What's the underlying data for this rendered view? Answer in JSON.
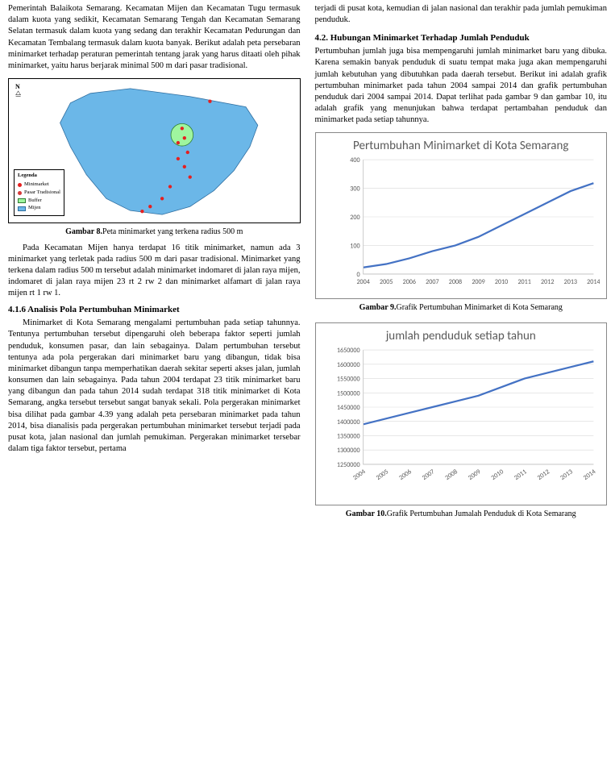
{
  "col1": {
    "p_top": "Pemerintah Balaikota Semarang. Kecamatan Mijen dan Kecamatan Tugu termasuk dalam kuota yang sedikit, Kecamatan Semarang Tengah dan Kecamatan Semarang Selatan termasuk dalam kuota yang sedang dan terakhir Kecamatan Pedurungan dan Kecamatan Tembalang termasuk dalam kuota banyak. Berikut adalah peta persebaran minimarket terhadap peraturan pemerintah tentang jarak yang harus ditaati oleh pihak minimarket, yaitu harus berjarak minimal 500 m dari pasar tradisional.",
    "map": {
      "compass": "N",
      "legend_title": "Legenda",
      "legend_items": [
        {
          "label": "Minimarket",
          "type": "dot",
          "color": "#e52020"
        },
        {
          "label": "Pasar Tradisional",
          "type": "dot",
          "color": "#d63a3a"
        },
        {
          "label": "Buffer",
          "type": "sw",
          "color": "#9ff59f",
          "border": "#2e7d32"
        },
        {
          "label": "Mijen",
          "type": "sw",
          "color": "#6bb7e8",
          "border": "#2f6ea0"
        }
      ],
      "region_fill": "#6bb7e8",
      "region_stroke": "#2f6ea0",
      "buffer_fill": "#9ff59f",
      "buffer_stroke": "#2e7d32",
      "point_color": "#e52020"
    },
    "caption8_b": "Gambar 8.",
    "caption8": "Peta minimarket yang terkena radius 500 m",
    "p_after_map": "Pada Kecamatan Mijen hanya terdapat 16 titik minimarket, namun ada 3 minimarket yang terletak pada radius 500 m dari pasar tradisional. Minimarket yang terkena dalam radius 500 m tersebut adalah minimarket indomaret di jalan raya mijen, indomaret di jalan raya mijen 23 rt 2 rw 2 dan minimarket alfamart di jalan raya mijen rt 1 rw 1.",
    "h416": "4.1.6  Analisis Pola Pertumbuhan Minimarket",
    "p416": "Minimarket di Kota Semarang mengalami pertumbuhan pada setiap tahunnya. Tentunya pertumbuhan tersebut dipengaruhi oleh beberapa faktor seperti jumlah penduduk, konsumen pasar, dan lain sebagainya. Dalam pertumbuhan tersebut tentunya ada pola pergerakan dari minimarket baru yang dibangun, tidak bisa minimarket dibangun tanpa memperhatikan daerah sekitar seperti akses jalan, jumlah konsumen dan lain sebagainya. Pada tahun 2004 terdapat 23 titik minimarket baru yang dibangun dan pada tahun 2014 sudah terdapat 318 titik minimarket di Kota Semarang, angka tersebut tersebut sangat banyak sekali. Pola pergerakan minimarket bisa dilihat pada gambar 4.39 yang adalah peta persebaran minimarket pada tahun 2014, bisa dianalisis pada pergerakan pertumbuhan minimarket tersebut terjadi pada pusat kota, jalan nasional dan jumlah pemukiman. Pergerakan minimarket tersebar dalam tiga faktor tersebut, pertama"
  },
  "col2": {
    "p_top": "terjadi di pusat kota, kemudian di jalan nasional dan terakhir pada jumlah pemukiman penduduk.",
    "h42": "4.2.   Hubungan Minimarket Terhadap Jumlah Penduduk",
    "p42": "Pertumbuhan jumlah juga bisa mempengaruhi jumlah minimarket baru yang dibuka. Karena semakin banyak penduduk di suatu tempat maka juga akan mempengaruhi jumlah kebutuhan yang dibutuhkan pada daerah tersebut. Berikut ini adalah grafik pertumbuhan minimarket pada tahun 2004 sampai 2014 dan grafik pertumbuhan penduduk dari 2004 sampai 2014. Dapat terlihat pada gambar 9 dan gambar 10, itu adalah grafik yang menunjukan bahwa terdapat pertambahan penduduk dan minimarket pada setiap tahunnya.",
    "chart9": {
      "title": "Pertumbuhan Minimarket di Kota Semarang",
      "title_fontsize": 15,
      "years": [
        "2004",
        "2005",
        "2006",
        "2007",
        "2008",
        "2009",
        "2010",
        "2011",
        "2012",
        "2013",
        "2014"
      ],
      "values": [
        23,
        35,
        55,
        80,
        100,
        130,
        170,
        210,
        250,
        290,
        318
      ],
      "ylim": [
        0,
        400
      ],
      "ytick_step": 100,
      "yticks": [
        0,
        100,
        200,
        300,
        400
      ],
      "line_color": "#4472c4",
      "grid_color": "#d9d9d9",
      "bg": "#ffffff",
      "tick_font": 8
    },
    "caption9_b": "Gambar 9.",
    "caption9": "Grafik Pertumbuhan Minimarket di Kota Semarang",
    "chart10": {
      "title": "jumlah penduduk setiap tahun",
      "title_fontsize": 15,
      "years": [
        "2004",
        "2005",
        "2006",
        "2007",
        "2008",
        "2009",
        "2010",
        "2011",
        "2012",
        "2013",
        "2014"
      ],
      "values": [
        1390000,
        1410000,
        1430000,
        1450000,
        1470000,
        1490000,
        1520000,
        1550000,
        1570000,
        1590000,
        1610000
      ],
      "ylim": [
        1250000,
        1650000
      ],
      "ytick_step": 50000,
      "yticks": [
        1250000,
        1300000,
        1350000,
        1400000,
        1450000,
        1500000,
        1550000,
        1600000,
        1650000
      ],
      "line_color": "#4472c4",
      "grid_color": "#d9d9d9",
      "bg": "#ffffff",
      "tick_font": 8,
      "xlabel_rotate": -35
    },
    "caption10_b": "Gambar 10.",
    "caption10": "Grafik Pertumbuhan Jumalah Penduduk di Kota Semarang"
  }
}
